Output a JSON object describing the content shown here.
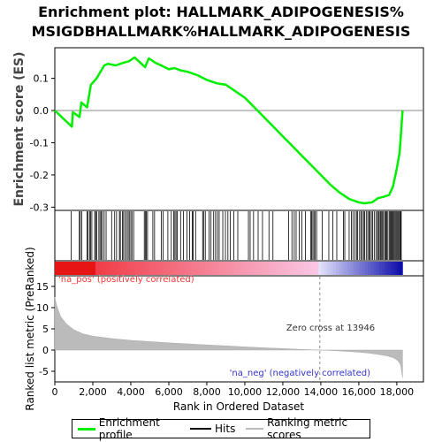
{
  "title_line1": "Enrichment plot: HALLMARK_ADIPOGENESIS%",
  "title_line2": "MSIGDBHALLMARK%HALLMARK_ADIPOGENESIS",
  "colors": {
    "enrichment": "#00ee00",
    "hits": "#000000",
    "ranking": "#bbbbbb",
    "zero_line": "#888888",
    "pos_label": "#ff3333",
    "neg_label": "#3333cc"
  },
  "labels": {
    "pos": "'na_pos' (positively correlated)",
    "neg": "'na_neg' (negatively correlated)",
    "zero_cross": "Zero cross at 13946"
  },
  "legend": {
    "enrichment": "Enrichment profile",
    "hits": "Hits",
    "ranking": "Ranking metric scores"
  },
  "chart_data": [
    {
      "type": "line",
      "title": "Enrichment plot: HALLMARK_ADIPOGENESIS% MSIGDBHALLMARK%HALLMARK_ADIPOGENESIS",
      "ylabel": "Enrichment score (ES)",
      "ylim": [
        -0.31,
        0.195
      ],
      "xlim": [
        0,
        19400
      ],
      "yticks": [
        0.1,
        0.0,
        -0.1,
        -0.2,
        -0.3
      ],
      "ytick_labels": [
        "0.1",
        "0.0",
        "-0.1",
        "-0.2",
        "-0.3"
      ],
      "grid": false,
      "series": [
        {
          "name": "Enrichment profile",
          "x": [
            0,
            900,
            950,
            1300,
            1400,
            1700,
            1900,
            2200,
            2600,
            2800,
            3200,
            3600,
            3900,
            4200,
            4750,
            4950,
            5300,
            5600,
            6000,
            6300,
            6600,
            7000,
            7500,
            8000,
            8500,
            9000,
            9500,
            10000,
            10500,
            11000,
            11500,
            12000,
            12500,
            13000,
            13500,
            14000,
            14500,
            15000,
            15500,
            16000,
            16300,
            16700,
            17000,
            17300,
            17600,
            17800,
            18000,
            18150,
            18230,
            18300
          ],
          "y": [
            0.0,
            -0.05,
            -0.005,
            -0.02,
            0.025,
            0.01,
            0.08,
            0.1,
            0.14,
            0.145,
            0.14,
            0.148,
            0.153,
            0.165,
            0.135,
            0.162,
            0.148,
            0.14,
            0.128,
            0.132,
            0.125,
            0.12,
            0.11,
            0.095,
            0.085,
            0.08,
            0.06,
            0.04,
            0.01,
            -0.02,
            -0.05,
            -0.08,
            -0.11,
            -0.14,
            -0.17,
            -0.2,
            -0.23,
            -0.255,
            -0.275,
            -0.285,
            -0.288,
            -0.285,
            -0.272,
            -0.268,
            -0.262,
            -0.235,
            -0.18,
            -0.13,
            -0.06,
            0.0
          ]
        }
      ]
    },
    {
      "type": "bar",
      "title": "Hits",
      "hit_positions": [
        860,
        1290,
        1340,
        1420,
        1690,
        1740,
        1830,
        1880,
        1950,
        2100,
        2150,
        2210,
        2320,
        2380,
        2440,
        2510,
        2600,
        2700,
        2990,
        3150,
        3250,
        3400,
        3450,
        3560,
        3620,
        3700,
        3780,
        3860,
        3920,
        4000,
        4060,
        4150,
        4710,
        4760,
        4820,
        4880,
        5160,
        5250,
        5600,
        5700,
        5950,
        6130,
        6260,
        6320,
        6380,
        6440,
        6620,
        6770,
        6950,
        7100,
        7230,
        7280,
        7410,
        7780,
        7830,
        7920,
        8120,
        8220,
        8360,
        8460,
        8560,
        8650,
        8840,
        8980,
        9110,
        9230,
        9420,
        9630,
        10190,
        10280,
        10460,
        10700,
        10930,
        11270,
        11480,
        12300,
        12480,
        12600,
        12700,
        12860,
        13000,
        13190,
        13460,
        13510,
        13580,
        13640,
        13700,
        13780,
        14070,
        14420,
        14630,
        14840,
        15190,
        15260,
        15490,
        15610,
        15690,
        15800,
        15880,
        15940,
        16040,
        16110,
        16180,
        16250,
        16300,
        16390,
        16470,
        16530,
        16590,
        16660,
        16720,
        16810,
        16900,
        16980,
        17030,
        17080,
        17140,
        17200,
        17250,
        17300,
        17370,
        17420,
        17470,
        17530,
        17600,
        17650,
        17700,
        17750,
        17800,
        17850,
        17900,
        17950,
        18000,
        18050,
        18100,
        18150,
        18200,
        18230
      ]
    },
    {
      "type": "area",
      "title": "Ranking metric scores",
      "xlabel": "Rank in Ordered Dataset",
      "ylabel": "Ranked list metric (PreRanked)",
      "ylim": [
        -7.5,
        17.5
      ],
      "xlim": [
        0,
        19400
      ],
      "xticks": [
        0,
        2000,
        4000,
        6000,
        8000,
        10000,
        12000,
        14000,
        16000,
        18000
      ],
      "xtick_labels": [
        "0",
        "2,000",
        "4,000",
        "6,000",
        "8,000",
        "10,000",
        "12,000",
        "14,000",
        "16,000",
        "18,000"
      ],
      "yticks": [
        15,
        10,
        5,
        0,
        -5
      ],
      "ytick_labels": [
        "15",
        "10",
        "5",
        "0",
        "-5"
      ],
      "zero_cross": 13946,
      "series": [
        {
          "name": "Ranking metric scores",
          "x": [
            0,
            100,
            300,
            600,
            1000,
            1500,
            2000,
            3000,
            4000,
            5000,
            6000,
            7000,
            8000,
            9000,
            10000,
            11000,
            12000,
            13000,
            13946,
            14500,
            15000,
            15500,
            16000,
            16500,
            17000,
            17500,
            17800,
            18000,
            18100,
            18200,
            18300
          ],
          "y": [
            12.5,
            10.5,
            8.0,
            6.2,
            4.8,
            3.8,
            3.3,
            2.7,
            2.3,
            2.0,
            1.7,
            1.45,
            1.2,
            1.0,
            0.75,
            0.55,
            0.35,
            0.15,
            0.0,
            -0.1,
            -0.2,
            -0.35,
            -0.5,
            -0.7,
            -1.0,
            -1.4,
            -1.8,
            -2.3,
            -2.8,
            -3.5,
            -6.5
          ]
        }
      ]
    }
  ]
}
